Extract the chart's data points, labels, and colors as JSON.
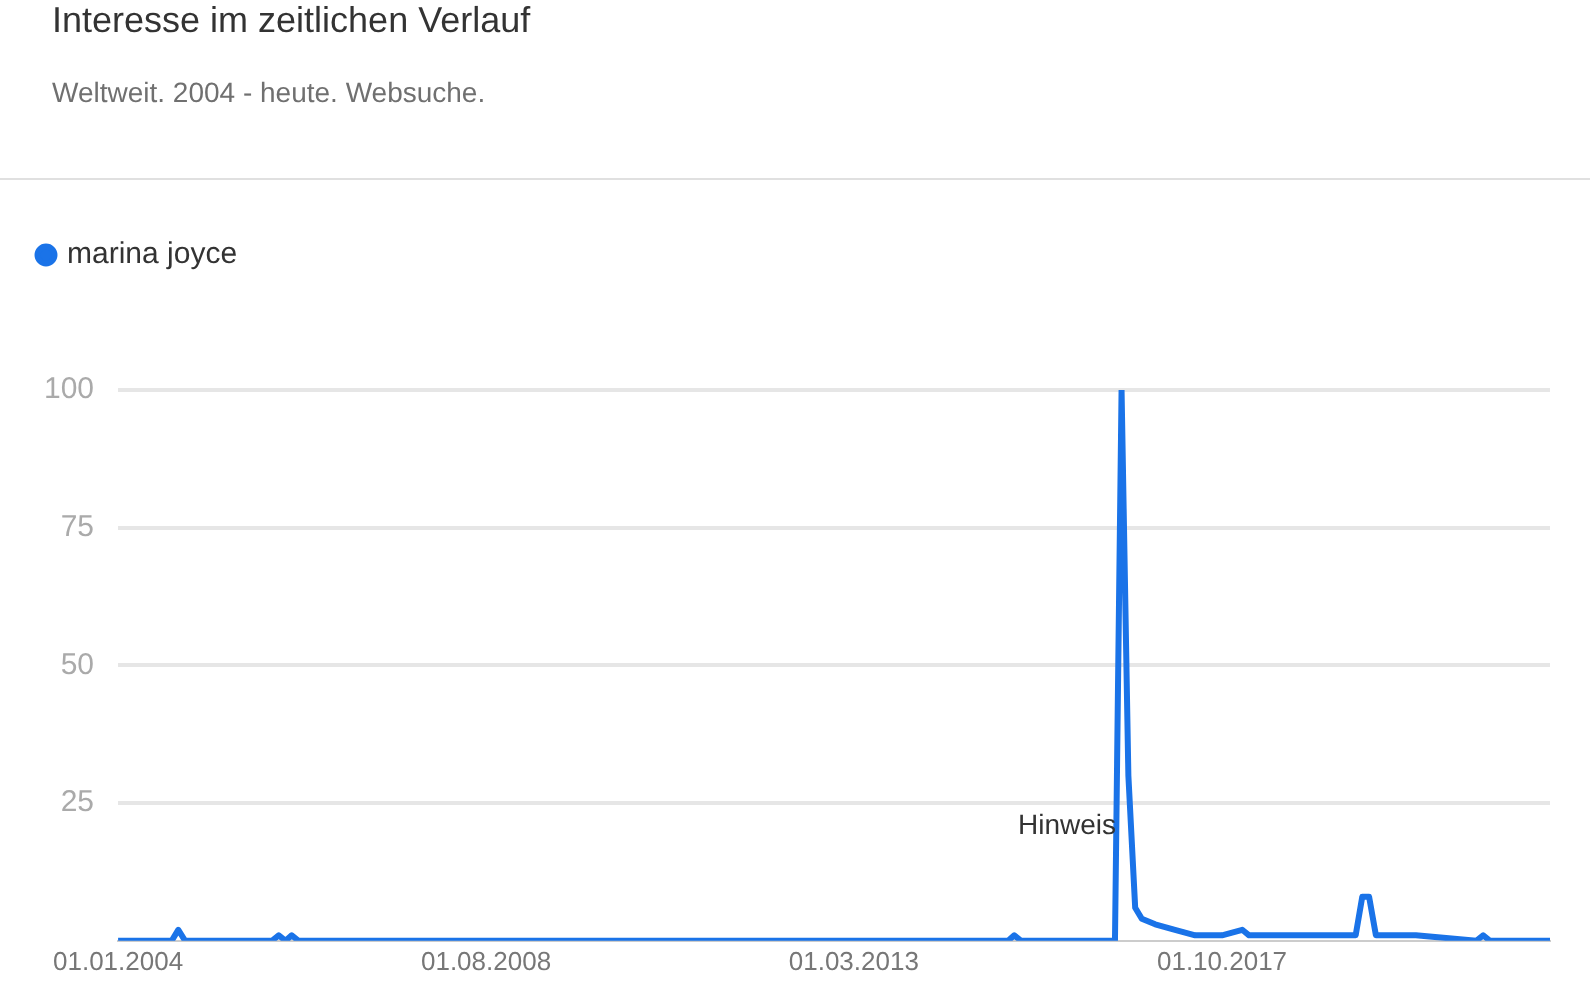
{
  "chart_data": {
    "type": "line",
    "title": "Interesse im zeitlichen Verlauf",
    "subtitle": "Weltweit. 2004 - heute. Websuche.",
    "x": [
      "2004-01",
      "2004-09",
      "2004-10",
      "2004-11",
      "2005-12",
      "2006-01",
      "2006-02",
      "2006-03",
      "2006-04",
      "2015-02",
      "2015-03",
      "2015-04",
      "2016-06",
      "2016-07",
      "2016-08",
      "2016-09",
      "2016-10",
      "2016-12",
      "2017-03",
      "2017-06",
      "2017-10",
      "2018-01",
      "2018-02",
      "2019-06",
      "2019-07",
      "2019-08",
      "2019-09",
      "2020-03",
      "2020-12",
      "2021-01",
      "2021-02",
      "2021-11"
    ],
    "series": [
      {
        "name": "marina joyce",
        "color": "#1a73e8",
        "values": [
          0,
          0,
          2,
          0,
          0,
          1,
          0,
          1,
          0,
          0,
          1,
          0,
          0,
          100,
          30,
          6,
          4,
          3,
          2,
          1,
          1,
          2,
          1,
          1,
          8,
          8,
          1,
          1,
          0,
          1,
          0,
          0
        ]
      }
    ],
    "xlim": [
      "2004-01-01",
      "2021-11-01"
    ],
    "xticks": [
      {
        "value": "2004-01-01",
        "label": "01.01.2004"
      },
      {
        "value": "2008-08-01",
        "label": "01.08.2008"
      },
      {
        "value": "2013-03-01",
        "label": "01.03.2013"
      },
      {
        "value": "2017-10-01",
        "label": "01.10.2017"
      }
    ],
    "ylim": [
      0,
      100
    ],
    "yticks": [
      25,
      50,
      75,
      100
    ],
    "grid": "y",
    "legend": "top left",
    "marker": "none",
    "line_style": "solid",
    "annotations": [
      "Hinweis"
    ]
  }
}
